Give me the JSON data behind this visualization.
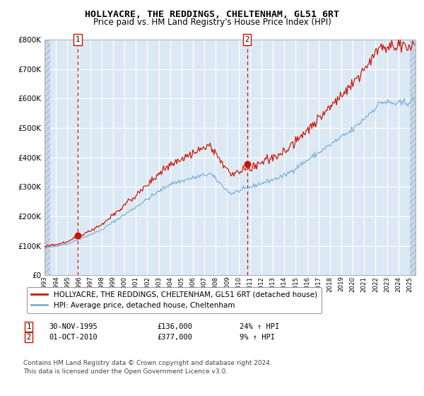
{
  "title": "HOLLYACRE, THE REDDINGS, CHELTENHAM, GL51 6RT",
  "subtitle": "Price paid vs. HM Land Registry's House Price Index (HPI)",
  "xmin_year": 1993,
  "xmax_year": 2025.5,
  "ymin": 0,
  "ymax": 800000,
  "yticks": [
    0,
    100000,
    200000,
    300000,
    400000,
    500000,
    600000,
    700000,
    800000
  ],
  "ytick_labels": [
    "£0",
    "£100K",
    "£200K",
    "£300K",
    "£400K",
    "£500K",
    "£600K",
    "£700K",
    "£800K"
  ],
  "xtick_years": [
    1993,
    1994,
    1995,
    1996,
    1997,
    1998,
    1999,
    2000,
    2001,
    2002,
    2003,
    2004,
    2005,
    2006,
    2007,
    2008,
    2009,
    2010,
    2011,
    2012,
    2013,
    2014,
    2015,
    2016,
    2017,
    2018,
    2019,
    2020,
    2021,
    2022,
    2023,
    2024,
    2025
  ],
  "sale1_year": 1995.917,
  "sale1_price": 136000,
  "sale1_label": "1",
  "sale1_date": "30-NOV-1995",
  "sale1_hpi_pct": "24%",
  "sale2_year": 2010.75,
  "sale2_price": 377000,
  "sale2_label": "2",
  "sale2_date": "01-OCT-2010",
  "sale2_hpi_pct": "9%",
  "hpi_line_color": "#7bafd4",
  "price_line_color": "#cc1100",
  "sale_dot_color": "#cc1100",
  "dashed_line_color": "#cc1100",
  "background_color": "#dce9f5",
  "hatch_color": "#c8d8e8",
  "grid_color": "#ffffff",
  "legend_line1": "HOLLYACRE, THE REDDINGS, CHELTENHAM, GL51 6RT (detached house)",
  "legend_line2": "HPI: Average price, detached house, Cheltenham",
  "footer": "Contains HM Land Registry data © Crown copyright and database right 2024.\nThis data is licensed under the Open Government Licence v3.0.",
  "title_fontsize": 9.5,
  "subtitle_fontsize": 8.5,
  "axis_fontsize": 7.5,
  "legend_fontsize": 7.5,
  "footer_fontsize": 6.5
}
